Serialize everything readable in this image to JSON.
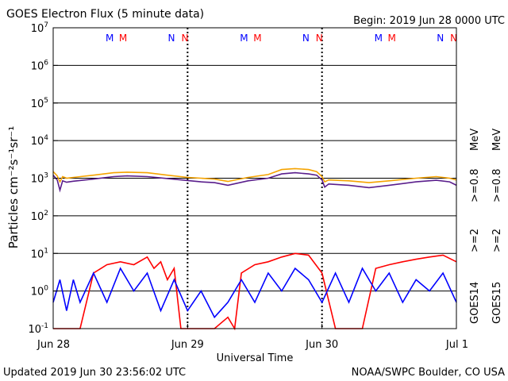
{
  "header": {
    "title": "GOES Electron Flux (5 minute data)",
    "begin": "Begin: 2019 Jun 28 0000 UTC"
  },
  "footer": {
    "updated": "Updated 2019 Jun 30 23:56:02 UTC",
    "credit": "NOAA/SWPC Boulder, CO USA"
  },
  "colors": {
    "goes15_ge08": "#f5a300",
    "goes14_ge08": "#5a1e8c",
    "goes15_ge2": "#ff0000",
    "goes14_ge2": "#0000ff",
    "goes14_label": "#0000ff",
    "goes15_label": "#ff0000"
  },
  "right_labels": {
    "goes14": "GOES14",
    "goes15": "GOES15",
    "ge2": ">=2",
    "ge08": ">=0.8",
    "mev": "MeV"
  },
  "chart_data": {
    "type": "line",
    "xlabel": "Universal Time",
    "ylabel": "Particles cm⁻²s⁻¹sr⁻¹",
    "xlim": [
      0,
      3
    ],
    "x_ticks": [
      {
        "x": 0,
        "label": "Jun 28"
      },
      {
        "x": 1,
        "label": "Jun 29"
      },
      {
        "x": 2,
        "label": "Jun 30"
      },
      {
        "x": 3,
        "label": "Jul 1"
      }
    ],
    "y_scale": "log",
    "ylim_exp": [
      -1,
      7
    ],
    "y_ticks": [
      {
        "exp": -1,
        "base": "10",
        "sup": "-1"
      },
      {
        "exp": 0,
        "base": "10",
        "sup": "0"
      },
      {
        "exp": 1,
        "base": "10",
        "sup": "1"
      },
      {
        "exp": 2,
        "base": "10",
        "sup": "2"
      },
      {
        "exp": 3,
        "base": "10",
        "sup": "3"
      },
      {
        "exp": 4,
        "base": "10",
        "sup": "4"
      },
      {
        "exp": 5,
        "base": "10",
        "sup": "5"
      },
      {
        "exp": 6,
        "base": "10",
        "sup": "6"
      },
      {
        "exp": 7,
        "base": "10",
        "sup": "7"
      }
    ],
    "threshold_exp": 3,
    "midnight_lines_x": [
      1,
      2
    ],
    "marks": [
      {
        "label": "M",
        "x": 0.42,
        "color": "#0000ff"
      },
      {
        "label": "M",
        "x": 0.52,
        "color": "#ff0000"
      },
      {
        "label": "N",
        "x": 0.88,
        "color": "#0000ff"
      },
      {
        "label": "N",
        "x": 0.98,
        "color": "#ff0000"
      },
      {
        "label": "M",
        "x": 1.42,
        "color": "#0000ff"
      },
      {
        "label": "M",
        "x": 1.52,
        "color": "#ff0000"
      },
      {
        "label": "N",
        "x": 1.88,
        "color": "#0000ff"
      },
      {
        "label": "N",
        "x": 1.98,
        "color": "#ff0000"
      },
      {
        "label": "M",
        "x": 2.42,
        "color": "#0000ff"
      },
      {
        "label": "M",
        "x": 2.52,
        "color": "#ff0000"
      },
      {
        "label": "N",
        "x": 2.88,
        "color": "#0000ff"
      },
      {
        "label": "N",
        "x": 2.98,
        "color": "#ff0000"
      }
    ],
    "series": [
      {
        "name": "GOES15 >=0.8 MeV",
        "color": "#f5a300",
        "x": [
          0,
          0.03,
          0.05,
          0.07,
          0.1,
          0.15,
          0.3,
          0.45,
          0.55,
          0.7,
          0.85,
          1.0,
          1.1,
          1.2,
          1.3,
          1.45,
          1.6,
          1.7,
          1.8,
          1.9,
          1.96,
          2.0,
          2.02,
          2.05,
          2.2,
          2.35,
          2.5,
          2.7,
          2.85,
          2.95,
          3.0
        ],
        "y": [
          1500,
          1150,
          800,
          1100,
          1000,
          1050,
          1200,
          1400,
          1450,
          1400,
          1200,
          1050,
          1000,
          950,
          820,
          1050,
          1250,
          1700,
          1800,
          1700,
          1500,
          1100,
          800,
          900,
          850,
          760,
          850,
          1000,
          1100,
          1000,
          900
        ]
      },
      {
        "name": "GOES14 >=0.8 MeV",
        "color": "#5a1e8c",
        "x": [
          0,
          0.03,
          0.05,
          0.07,
          0.1,
          0.15,
          0.3,
          0.45,
          0.55,
          0.7,
          0.85,
          1.0,
          1.1,
          1.2,
          1.3,
          1.45,
          1.6,
          1.7,
          1.8,
          1.9,
          1.96,
          2.0,
          2.02,
          2.05,
          2.2,
          2.35,
          2.5,
          2.7,
          2.85,
          2.95,
          3.0
        ],
        "y": [
          1200,
          900,
          480,
          850,
          780,
          830,
          950,
          1100,
          1150,
          1100,
          980,
          870,
          800,
          760,
          650,
          850,
          1000,
          1300,
          1400,
          1300,
          1200,
          900,
          580,
          700,
          650,
          560,
          650,
          800,
          880,
          800,
          650
        ]
      },
      {
        "name": "GOES15 >=2 MeV",
        "color": "#ff0000",
        "x": [
          0,
          0.05,
          0.1,
          0.15,
          0.2,
          0.3,
          0.4,
          0.5,
          0.6,
          0.7,
          0.75,
          0.8,
          0.85,
          0.9,
          0.95,
          1.0,
          1.1,
          1.2,
          1.3,
          1.35,
          1.4,
          1.5,
          1.6,
          1.7,
          1.8,
          1.9,
          2.0,
          2.1,
          2.2,
          2.3,
          2.4,
          2.5,
          2.6,
          2.7,
          2.8,
          2.9,
          3.0
        ],
        "y": [
          0.1,
          0.1,
          0.1,
          0.1,
          0.1,
          3,
          5,
          6,
          5,
          8,
          4,
          6,
          2,
          4,
          0.1,
          0.1,
          0.1,
          0.1,
          0.2,
          0.1,
          3,
          5,
          6,
          8,
          10,
          9,
          3,
          0.1,
          0.1,
          0.1,
          4,
          5,
          6,
          7,
          8,
          9,
          6
        ]
      },
      {
        "name": "GOES14 >=2 MeV",
        "color": "#0000ff",
        "x": [
          0,
          0.05,
          0.1,
          0.15,
          0.2,
          0.3,
          0.4,
          0.5,
          0.6,
          0.7,
          0.8,
          0.9,
          1.0,
          1.1,
          1.2,
          1.3,
          1.4,
          1.5,
          1.6,
          1.7,
          1.8,
          1.9,
          2.0,
          2.1,
          2.2,
          2.3,
          2.4,
          2.5,
          2.6,
          2.7,
          2.8,
          2.9,
          3.0
        ],
        "y": [
          0.5,
          2,
          0.3,
          2,
          0.5,
          3,
          0.5,
          4,
          1,
          3,
          0.3,
          2,
          0.3,
          1,
          0.2,
          0.5,
          2,
          0.5,
          3,
          1,
          4,
          2,
          0.5,
          3,
          0.5,
          4,
          1,
          3,
          0.5,
          2,
          1,
          3,
          0.5
        ]
      }
    ]
  }
}
